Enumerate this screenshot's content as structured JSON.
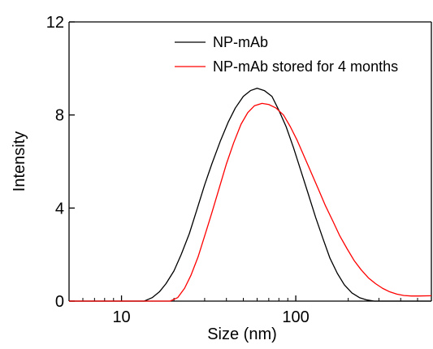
{
  "chart_data": {
    "type": "line",
    "title": "",
    "xlabel": "Size (nm)",
    "ylabel": "Intensity",
    "x_scale": "log",
    "xlim": [
      5,
      600
    ],
    "ylim": [
      0,
      12
    ],
    "x_ticks": [
      {
        "value": 10,
        "label": "10"
      },
      {
        "value": 100,
        "label": "100"
      }
    ],
    "y_ticks": [
      {
        "value": 0,
        "label": "0"
      },
      {
        "value": 4,
        "label": "4"
      },
      {
        "value": 8,
        "label": "8"
      },
      {
        "value": 12,
        "label": "12"
      }
    ],
    "grid": false,
    "legend_position": "top-right",
    "series": [
      {
        "name": "NP-mAb",
        "color": "#000000",
        "x": [
          5,
          13.5,
          15,
          16.5,
          18,
          20,
          22,
          24.5,
          27,
          30,
          33,
          37,
          41,
          45,
          50,
          55,
          60,
          66,
          73,
          80,
          88,
          97,
          107,
          118,
          130,
          143,
          157,
          173,
          190,
          210,
          232,
          256,
          282,
          310,
          600
        ],
        "y": [
          0,
          0,
          0.15,
          0.4,
          0.75,
          1.3,
          2.0,
          2.9,
          3.9,
          5.0,
          5.9,
          6.9,
          7.7,
          8.3,
          8.8,
          9.05,
          9.15,
          9.05,
          8.8,
          8.2,
          7.5,
          6.6,
          5.6,
          4.6,
          3.6,
          2.7,
          1.85,
          1.2,
          0.7,
          0.35,
          0.15,
          0.05,
          0.0,
          0,
          0
        ]
      },
      {
        "name": "NP-mAb stored for 4 months",
        "color": "#ff0000",
        "x": [
          5,
          19,
          21,
          23,
          25,
          27.5,
          30,
          33,
          36.5,
          40,
          44,
          48.5,
          53,
          58,
          64,
          70,
          77,
          85,
          93,
          102,
          112,
          123,
          135,
          148,
          163,
          179,
          197,
          216,
          237,
          261,
          287,
          315,
          346,
          380,
          418,
          460,
          505,
          600
        ],
        "y": [
          0,
          0,
          0.15,
          0.55,
          1.1,
          1.9,
          2.8,
          3.8,
          4.9,
          5.9,
          6.8,
          7.6,
          8.1,
          8.4,
          8.5,
          8.45,
          8.3,
          8.0,
          7.5,
          6.9,
          6.2,
          5.5,
          4.8,
          4.1,
          3.45,
          2.8,
          2.25,
          1.75,
          1.35,
          1.0,
          0.75,
          0.55,
          0.4,
          0.3,
          0.24,
          0.22,
          0.22,
          0.23
        ]
      }
    ]
  }
}
